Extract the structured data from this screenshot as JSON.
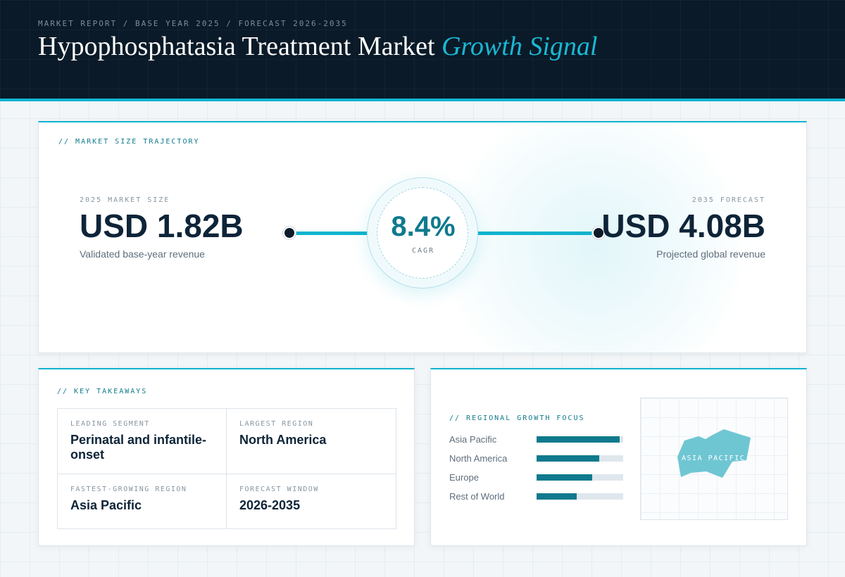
{
  "header": {
    "eyebrow": "MARKET REPORT / BASE YEAR 2025 / FORECAST 2026-2035",
    "title_main": "Hypophosphatasia Treatment Market",
    "title_accent": "Growth Signal"
  },
  "trajectory": {
    "section_label": "// MARKET SIZE TRAJECTORY",
    "start": {
      "label": "2025 MARKET SIZE",
      "value": "USD 1.82B",
      "caption": "Validated base-year revenue"
    },
    "cagr": {
      "value": "8.4%",
      "label": "CAGR"
    },
    "end": {
      "label": "2035 FORECAST",
      "value": "USD 4.08B",
      "caption": "Projected global revenue"
    }
  },
  "takeaways": {
    "section_label": "// KEY TAKEAWAYS",
    "items": [
      {
        "key": "LEADING SEGMENT",
        "value": "Perinatal and infantile-onset"
      },
      {
        "key": "LARGEST REGION",
        "value": "North America"
      },
      {
        "key": "FASTEST-GROWING REGION",
        "value": "Asia Pacific"
      },
      {
        "key": "FORECAST WINDOW",
        "value": "2026-2035"
      }
    ]
  },
  "regional": {
    "section_label": "// REGIONAL GROWTH FOCUS",
    "bar_color": "#0f7a8d",
    "track_color": "#dfe7ed",
    "regions": [
      {
        "name": "Asia Pacific",
        "level": 0.96
      },
      {
        "name": "North America",
        "level": 0.72
      },
      {
        "name": "Europe",
        "level": 0.64
      },
      {
        "name": "Rest of World",
        "level": 0.46
      }
    ],
    "map_label": "ASIA PACIFIC",
    "map_color": "#6fc6d3"
  },
  "colors": {
    "header_bg": "#0a1a28",
    "accent": "#10b3cf",
    "accent_dark": "#0f7a8d",
    "heading_text": "#0e2438"
  }
}
